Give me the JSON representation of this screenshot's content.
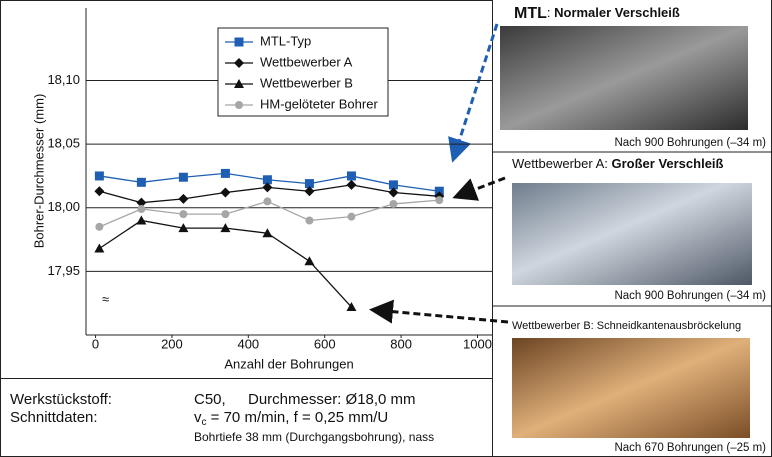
{
  "chart_data": {
    "type": "line",
    "y_label": "Bohrer-Durchmesser (mm)",
    "x_label": "Anzahl der Bohrungen",
    "x": [
      10,
      120,
      230,
      340,
      450,
      560,
      670,
      780,
      900
    ],
    "series": [
      {
        "name": "MTL-Typ",
        "color": "#1f5fb3",
        "marker": "square",
        "values": [
          18.025,
          18.02,
          18.024,
          18.027,
          18.022,
          18.019,
          18.025,
          18.018,
          18.013
        ]
      },
      {
        "name": "Wettbewerber A",
        "color": "#111111",
        "marker": "diamond",
        "values": [
          18.013,
          18.004,
          18.007,
          18.012,
          18.016,
          18.013,
          18.018,
          18.012,
          18.009
        ]
      },
      {
        "name": "Wettbewerber B",
        "color": "#111111",
        "marker": "triangle",
        "values": [
          17.968,
          17.99,
          17.984,
          17.984,
          17.98,
          17.958,
          17.922,
          null,
          null
        ]
      },
      {
        "name": "HM-gelöteter Bohrer",
        "color": "#a6a6a6",
        "marker": "circle",
        "values": [
          17.985,
          17.999,
          17.995,
          17.995,
          18.005,
          17.99,
          17.993,
          18.003,
          18.006
        ]
      }
    ],
    "xlim": [
      -25,
      1038
    ],
    "xticks": [
      0,
      200,
      400,
      600,
      800,
      1000
    ],
    "ylim": [
      17.9,
      18.157
    ],
    "yticks": [
      {
        "value": 17.95,
        "label": "17,95"
      },
      {
        "value": 18.0,
        "label": "18,00"
      },
      {
        "value": 18.05,
        "label": "18,05"
      },
      {
        "value": 18.1,
        "label": "18,10"
      }
    ],
    "y_break_label": "≈",
    "grid": true,
    "legend": "top"
  },
  "specs": {
    "material_label": "Werkstückstoff:",
    "material": "C50,",
    "diameter": "Durchmesser: Ø18,0 mm",
    "cutting_label": "Schnittdaten:",
    "cutting_v": "v",
    "cutting_sub": "c",
    "cutting_rest": " = 70 m/min, f = 0,25 mm/U",
    "note": "Bohrtiefe 38 mm (Durchgangsbohrung), nass"
  },
  "photos": [
    {
      "head": [
        "MTL",
        ": ",
        "Normaler Verschleiß"
      ],
      "caption": "Nach 900 Bohrungen (–34 m)"
    },
    {
      "head": [
        "Wettbewerber A: ",
        "Großer Verschleiß"
      ],
      "caption": "Nach 900 Bohrungen (–34 m)"
    },
    {
      "head": [
        "Wettbewerber B: Schneidkantenausbröckelung"
      ],
      "caption": "Nach 670 Bohrungen (–25 m)"
    }
  ]
}
